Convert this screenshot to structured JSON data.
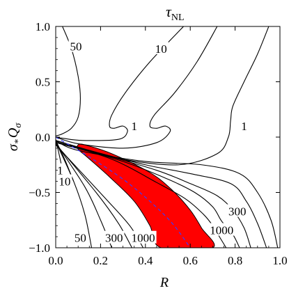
{
  "chart_data": {
    "type": "contour",
    "title": {
      "main": "τ",
      "subscript": "NL"
    },
    "xlabel": "R",
    "ylabel": {
      "parts": [
        "σ",
        "*",
        "Q",
        "σ"
      ]
    },
    "xlim": [
      0.0,
      1.0
    ],
    "ylim": [
      -1.0,
      1.0
    ],
    "x_ticks": [
      "0.0",
      "0.2",
      "0.4",
      "0.6",
      "0.8",
      "1.0"
    ],
    "y_ticks": [
      "1.0",
      "0.5",
      "0.0",
      "−0.5",
      "−1.0"
    ],
    "x_tick_values": [
      0.0,
      0.2,
      0.4,
      0.6,
      0.8,
      1.0
    ],
    "y_tick_values": [
      1.0,
      0.5,
      0.0,
      -0.5,
      -1.0
    ],
    "contour_labels": [
      {
        "text": "50",
        "x": 0.09,
        "y": 0.82
      },
      {
        "text": "10",
        "x": 0.47,
        "y": 0.8
      },
      {
        "text": "1",
        "x": 0.35,
        "y": 0.1
      },
      {
        "text": "1",
        "x": 0.84,
        "y": 0.1
      },
      {
        "text": "1",
        "x": 0.02,
        "y": -0.3
      },
      {
        "text": "10",
        "x": 0.04,
        "y": -0.4
      },
      {
        "text": "50",
        "x": 0.11,
        "y": -0.91
      },
      {
        "text": "300",
        "x": 0.26,
        "y": -0.91
      },
      {
        "text": "1000",
        "x": 0.39,
        "y": -0.91
      },
      {
        "text": "300",
        "x": 0.81,
        "y": -0.67
      },
      {
        "text": "1000",
        "x": 0.74,
        "y": -0.84
      }
    ],
    "contours": [
      {
        "level": 50,
        "points": [
          [
            0.03,
            1.0
          ],
          [
            0.07,
            0.8
          ],
          [
            0.1,
            0.55
          ],
          [
            0.11,
            0.35
          ],
          [
            0.1,
            0.18
          ],
          [
            0.07,
            0.08
          ],
          [
            0.03,
            0.03
          ],
          [
            0.0,
            0.01
          ]
        ]
      },
      {
        "level": 10,
        "points": [
          [
            0.57,
            1.0
          ],
          [
            0.42,
            0.68
          ],
          [
            0.31,
            0.4
          ],
          [
            0.25,
            0.2
          ],
          [
            0.24,
            0.1
          ],
          [
            0.26,
            0.08
          ],
          [
            0.3,
            0.1
          ],
          [
            0.32,
            0.05
          ],
          [
            0.28,
            -0.02
          ],
          [
            0.12,
            -0.03
          ],
          [
            0.03,
            -0.01
          ],
          [
            0.0,
            0.0
          ]
        ]
      },
      {
        "level": 1,
        "points": [
          [
            0.72,
            1.0
          ],
          [
            0.63,
            0.68
          ],
          [
            0.53,
            0.4
          ],
          [
            0.44,
            0.2
          ],
          [
            0.42,
            0.1
          ],
          [
            0.45,
            0.08
          ],
          [
            0.49,
            0.1
          ],
          [
            0.51,
            0.05
          ],
          [
            0.45,
            -0.05
          ],
          [
            0.3,
            -0.1
          ],
          [
            0.1,
            -0.06
          ],
          [
            0.0,
            0.0
          ]
        ]
      },
      {
        "level": 1,
        "points": [
          [
            0.95,
            1.0
          ],
          [
            0.9,
            0.75
          ],
          [
            0.84,
            0.5
          ],
          [
            0.79,
            0.28
          ],
          [
            0.78,
            0.15
          ],
          [
            0.77,
            0.0
          ],
          [
            0.72,
            -0.15
          ],
          [
            0.55,
            -0.25
          ],
          [
            0.3,
            -0.2
          ],
          [
            0.0,
            -0.05
          ]
        ]
      },
      {
        "level": 50,
        "points": [
          [
            0.99,
            -1.0
          ],
          [
            0.96,
            -0.75
          ],
          [
            0.9,
            -0.5
          ],
          [
            0.82,
            -0.33
          ],
          [
            0.65,
            -0.25
          ],
          [
            0.4,
            -0.22
          ],
          [
            0.1,
            -0.12
          ],
          [
            0.0,
            -0.03
          ]
        ]
      },
      {
        "level": 300,
        "points": [
          [
            0.94,
            -1.0
          ],
          [
            0.9,
            -0.78
          ],
          [
            0.85,
            -0.58
          ],
          [
            0.78,
            -0.42
          ],
          [
            0.6,
            -0.33
          ],
          [
            0.4,
            -0.25
          ],
          [
            0.15,
            -0.12
          ],
          [
            0.0,
            -0.03
          ]
        ]
      },
      {
        "level": 1000,
        "points": [
          [
            0.87,
            -1.0
          ],
          [
            0.84,
            -0.82
          ],
          [
            0.79,
            -0.66
          ],
          [
            0.72,
            -0.53
          ],
          [
            0.6,
            -0.42
          ],
          [
            0.45,
            -0.3
          ],
          [
            0.2,
            -0.15
          ],
          [
            0.0,
            -0.03
          ]
        ]
      },
      {
        "level": 300,
        "points": [
          [
            0.82,
            -1.0
          ],
          [
            0.79,
            -0.88
          ],
          [
            0.74,
            -0.76
          ],
          [
            0.7,
            -0.63
          ],
          [
            0.62,
            -0.5
          ],
          [
            0.5,
            -0.38
          ],
          [
            0.3,
            -0.22
          ],
          [
            0.0,
            -0.04
          ]
        ]
      },
      {
        "level": 1000,
        "points": [
          [
            0.76,
            -1.0
          ],
          [
            0.73,
            -0.9
          ],
          [
            0.7,
            -0.8
          ],
          [
            0.66,
            -0.7
          ],
          [
            0.58,
            -0.56
          ],
          [
            0.45,
            -0.41
          ],
          [
            0.25,
            -0.2
          ],
          [
            0.0,
            -0.04
          ]
        ]
      },
      {
        "level": 1,
        "points": [
          [
            0.0,
            -0.02
          ],
          [
            0.02,
            -0.2
          ],
          [
            0.04,
            -0.4
          ]
        ]
      },
      {
        "level": 10,
        "points": [
          [
            0.0,
            -0.03
          ],
          [
            0.04,
            -0.2
          ],
          [
            0.08,
            -0.4
          ]
        ]
      },
      {
        "level": 50,
        "points": [
          [
            0.0,
            -0.04
          ],
          [
            0.08,
            -0.4
          ],
          [
            0.13,
            -0.7
          ],
          [
            0.16,
            -1.0
          ]
        ]
      },
      {
        "level": 300,
        "points": [
          [
            0.0,
            -0.05
          ],
          [
            0.13,
            -0.45
          ],
          [
            0.2,
            -0.75
          ],
          [
            0.25,
            -1.0
          ]
        ]
      },
      {
        "level": 1000,
        "points": [
          [
            0.0,
            -0.06
          ],
          [
            0.18,
            -0.5
          ],
          [
            0.28,
            -0.78
          ],
          [
            0.34,
            -1.0
          ]
        ]
      },
      {
        "level": null,
        "points": [
          [
            0.0,
            -0.07
          ],
          [
            0.22,
            -0.55
          ],
          [
            0.33,
            -0.8
          ],
          [
            0.39,
            -1.0
          ]
        ]
      }
    ],
    "shaded_region": {
      "color": "#ff0000",
      "points": [
        [
          0.1,
          -0.07
        ],
        [
          0.13,
          -0.07
        ],
        [
          0.25,
          -0.15
        ],
        [
          0.42,
          -0.32
        ],
        [
          0.52,
          -0.48
        ],
        [
          0.6,
          -0.66
        ],
        [
          0.65,
          -0.82
        ],
        [
          0.7,
          -1.0
        ],
        [
          0.47,
          -1.0
        ],
        [
          0.42,
          -0.8
        ],
        [
          0.35,
          -0.58
        ],
        [
          0.24,
          -0.36
        ],
        [
          0.14,
          -0.18
        ],
        [
          0.1,
          -0.11
        ]
      ]
    },
    "dashed_line": {
      "color": "#3a3aff",
      "points": [
        [
          0.0,
          0.0
        ],
        [
          0.15,
          -0.18
        ],
        [
          0.3,
          -0.38
        ],
        [
          0.42,
          -0.58
        ],
        [
          0.52,
          -0.78
        ],
        [
          0.6,
          -1.0
        ]
      ]
    },
    "colors": {
      "contour": "#000000",
      "region": "#ff0000",
      "dashed": "#3a3aff"
    }
  }
}
